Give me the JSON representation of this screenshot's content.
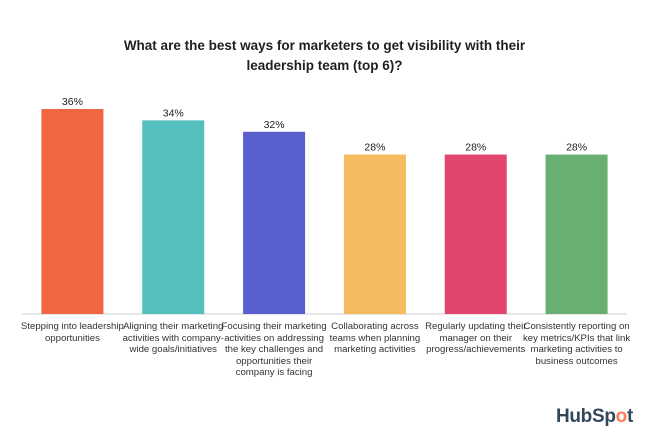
{
  "chart_data": {
    "type": "bar",
    "title_lines": [
      "What are the best ways for marketers to get visibility with their",
      "leadership team (top 6)?"
    ],
    "categories": [
      "Stepping into leadership opportunities",
      "Aligning their marketing activities with company-wide goals/initiatives",
      "Focusing their marketing activities on addressing the key challenges and opportunities their company is facing",
      "Collaborating across teams when planning marketing activities",
      "Regularly updating their manager on their progress/achievements",
      "Consistently reporting on key metrics/KPIs that link marketing activities to business outcomes"
    ],
    "values": [
      36,
      34,
      32,
      28,
      28,
      28
    ],
    "value_labels": [
      "36%",
      "34%",
      "32%",
      "28%",
      "28%",
      "28%"
    ],
    "colors": [
      "#ef6640",
      "#55bfbd",
      "#5a5fd0",
      "#f5bb5e",
      "#e2466e",
      "#6aaf72"
    ],
    "ylim": [
      0,
      40
    ],
    "grid": false
  },
  "brand": {
    "logo_prefix": "HubSp",
    "logo_spot": "o",
    "logo_suffix": "t"
  }
}
